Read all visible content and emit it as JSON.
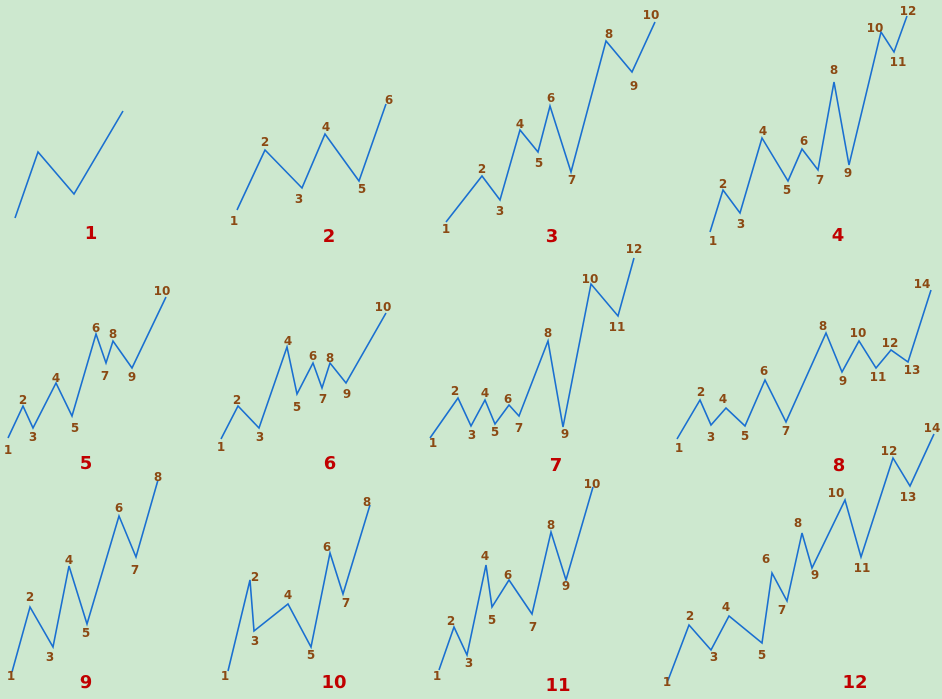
{
  "colors": {
    "background": "#cde8cf",
    "line": "#1a6fd0",
    "point_label": "#8b4a14",
    "panel_number": "#c00000"
  },
  "panels": [
    {
      "number": "1",
      "point_labels": []
    },
    {
      "number": "2",
      "point_labels": [
        "1",
        "2",
        "3",
        "4",
        "5",
        "6"
      ]
    },
    {
      "number": "3",
      "point_labels": [
        "1",
        "2",
        "3",
        "4",
        "5",
        "6",
        "7",
        "8",
        "9",
        "10"
      ]
    },
    {
      "number": "4",
      "point_labels": [
        "1",
        "2",
        "3",
        "4",
        "5",
        "6",
        "7",
        "8",
        "9",
        "10",
        "11",
        "12"
      ]
    },
    {
      "number": "5",
      "point_labels": [
        "1",
        "2",
        "3",
        "4",
        "5",
        "6",
        "7",
        "8",
        "9",
        "10"
      ]
    },
    {
      "number": "6",
      "point_labels": [
        "1",
        "2",
        "3",
        "4",
        "5",
        "6",
        "7",
        "8",
        "9",
        "10"
      ]
    },
    {
      "number": "7",
      "point_labels": [
        "1",
        "2",
        "3",
        "4",
        "5",
        "6",
        "7",
        "8",
        "9",
        "10",
        "11",
        "12"
      ]
    },
    {
      "number": "8",
      "point_labels": [
        "1",
        "2",
        "3",
        "4",
        "5",
        "6",
        "7",
        "8",
        "9",
        "10",
        "11",
        "12",
        "13",
        "14"
      ]
    },
    {
      "number": "9",
      "point_labels": [
        "1",
        "2",
        "3",
        "4",
        "5",
        "6",
        "7",
        "8"
      ]
    },
    {
      "number": "10",
      "point_labels": [
        "1",
        "2",
        "3",
        "4",
        "5",
        "6",
        "7",
        "8"
      ]
    },
    {
      "number": "11",
      "point_labels": [
        "1",
        "2",
        "3",
        "4",
        "5",
        "6",
        "7",
        "8",
        "9",
        "10"
      ]
    },
    {
      "number": "12",
      "point_labels": [
        "1",
        "2",
        "3",
        "4",
        "5",
        "6",
        "7",
        "8",
        "9",
        "10",
        "11",
        "12",
        "13",
        "14"
      ]
    }
  ]
}
